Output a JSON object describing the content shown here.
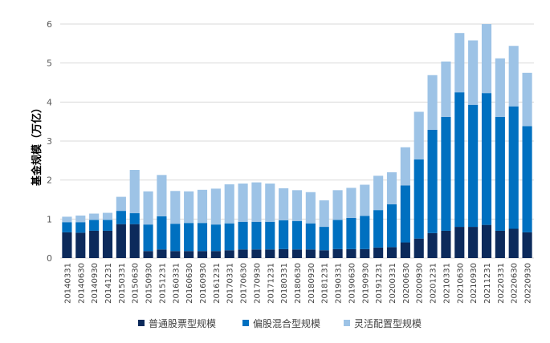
{
  "chart_data": {
    "type": "bar",
    "stacked": true,
    "ylabel": "基金规模（万亿）",
    "ylim": [
      0,
      6
    ],
    "yticks": [
      0,
      1,
      2,
      3,
      4,
      5,
      6
    ],
    "grid": true,
    "legend_position": "bottom",
    "categories": [
      "20140331",
      "20140630",
      "20140930",
      "20141231",
      "20150331",
      "20150630",
      "20150930",
      "20151231",
      "20160331",
      "20160630",
      "20160930",
      "20161231",
      "20170331",
      "20170630",
      "20170930",
      "20171231",
      "20180331",
      "20180630",
      "20180930",
      "20181231",
      "20190331",
      "20190630",
      "20190930",
      "20191231",
      "20200331",
      "20200630",
      "20200930",
      "20201231",
      "20210331",
      "20210630",
      "20210930",
      "20211231",
      "20220331",
      "20220630",
      "20220930"
    ],
    "series": [
      {
        "name": "普通股票型规模",
        "color": "#0c2a5b",
        "values": [
          0.66,
          0.65,
          0.7,
          0.7,
          0.87,
          0.87,
          0.18,
          0.22,
          0.18,
          0.18,
          0.18,
          0.18,
          0.2,
          0.22,
          0.22,
          0.22,
          0.23,
          0.22,
          0.22,
          0.2,
          0.23,
          0.23,
          0.23,
          0.27,
          0.28,
          0.4,
          0.5,
          0.64,
          0.7,
          0.8,
          0.8,
          0.85,
          0.7,
          0.75,
          0.66
        ]
      },
      {
        "name": "偏股混合型规模",
        "color": "#0070c0",
        "values": [
          0.26,
          0.27,
          0.28,
          0.28,
          0.34,
          0.28,
          0.68,
          0.85,
          0.7,
          0.72,
          0.72,
          0.68,
          0.69,
          0.71,
          0.71,
          0.71,
          0.74,
          0.73,
          0.67,
          0.6,
          0.75,
          0.8,
          0.85,
          0.96,
          1.1,
          1.46,
          2.03,
          2.65,
          2.92,
          3.45,
          3.13,
          3.38,
          2.92,
          3.14,
          2.72
        ]
      },
      {
        "name": "灵活配置型规模",
        "color": "#9dc3e6",
        "values": [
          0.14,
          0.17,
          0.16,
          0.18,
          0.36,
          1.11,
          0.85,
          1.06,
          0.84,
          0.81,
          0.85,
          0.92,
          1.0,
          0.98,
          1.01,
          0.98,
          0.82,
          0.79,
          0.8,
          0.68,
          0.76,
          0.77,
          0.8,
          0.88,
          0.82,
          0.98,
          1.22,
          1.4,
          1.42,
          1.52,
          1.65,
          1.77,
          1.5,
          1.55,
          1.37
        ]
      }
    ]
  }
}
